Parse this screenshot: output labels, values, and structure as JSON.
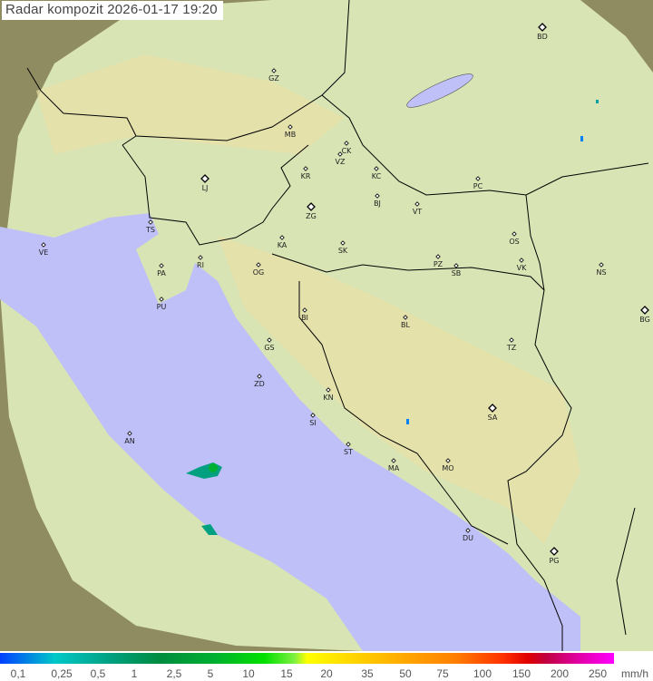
{
  "title": "Radar kompozit  2026-01-17   19:20",
  "colors": {
    "land": "#d9e4b4",
    "sea": "#bfc0f8",
    "outside": "#8e8c60",
    "border": "#000000"
  },
  "cities": [
    {
      "code": "GZ",
      "major": false
    },
    {
      "code": "MB",
      "major": false
    },
    {
      "code": "CK",
      "major": false
    },
    {
      "code": "VZ",
      "major": false
    },
    {
      "code": "KR",
      "major": false
    },
    {
      "code": "KC",
      "major": false
    },
    {
      "code": "LJ",
      "major": true
    },
    {
      "code": "ZG",
      "major": true
    },
    {
      "code": "BJ",
      "major": false
    },
    {
      "code": "VT",
      "major": false
    },
    {
      "code": "PC",
      "major": false
    },
    {
      "code": "BD",
      "major": true
    },
    {
      "code": "TS",
      "major": false
    },
    {
      "code": "VE",
      "major": false
    },
    {
      "code": "RI",
      "major": false
    },
    {
      "code": "KA",
      "major": false
    },
    {
      "code": "SK",
      "major": false
    },
    {
      "code": "OS",
      "major": false
    },
    {
      "code": "PZ",
      "major": false
    },
    {
      "code": "SB",
      "major": false
    },
    {
      "code": "VK",
      "major": false
    },
    {
      "code": "NS",
      "major": false
    },
    {
      "code": "PA",
      "major": false
    },
    {
      "code": "OG",
      "major": false
    },
    {
      "code": "PU",
      "major": false
    },
    {
      "code": "BG",
      "major": true
    },
    {
      "code": "BI",
      "major": false
    },
    {
      "code": "BL",
      "major": false
    },
    {
      "code": "GS",
      "major": false
    },
    {
      "code": "TZ",
      "major": false
    },
    {
      "code": "ZD",
      "major": false
    },
    {
      "code": "KN",
      "major": false
    },
    {
      "code": "SA",
      "major": true
    },
    {
      "code": "SI",
      "major": false
    },
    {
      "code": "AN",
      "major": false
    },
    {
      "code": "ST",
      "major": false
    },
    {
      "code": "MA",
      "major": false
    },
    {
      "code": "MO",
      "major": false
    },
    {
      "code": "DU",
      "major": false
    },
    {
      "code": "PG",
      "major": true
    }
  ],
  "legend": {
    "ticks": [
      "0,1",
      "0,25",
      "0,5",
      "1",
      "2,5",
      "5",
      "10",
      "15",
      "20",
      "35",
      "50",
      "75",
      "100",
      "150",
      "200",
      "250"
    ],
    "unit": "mm/h"
  }
}
